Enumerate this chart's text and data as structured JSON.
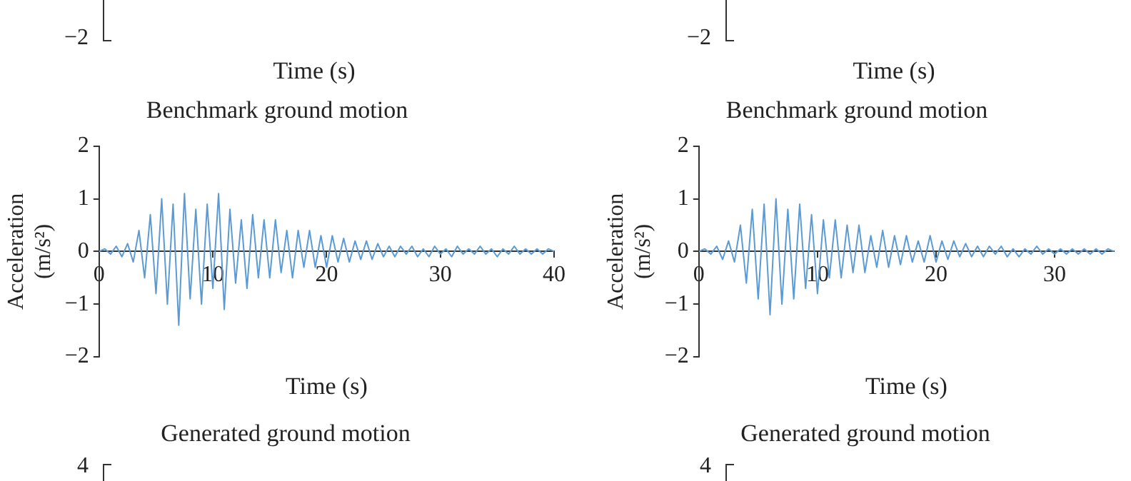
{
  "chart_data": [
    {
      "type": "other",
      "xlabel": "Time (s)",
      "annotations": [
        "−2"
      ]
    },
    {
      "type": "other",
      "xlabel": "Time (s)",
      "annotations": [
        "−2"
      ]
    },
    {
      "type": "line",
      "title": "Benchmark ground motion",
      "xlabel": "Time (s)",
      "ylabel": "Acceleration (m/s²)",
      "xlim": [
        0,
        40
      ],
      "xticks": [
        0,
        10,
        20,
        30,
        40
      ],
      "ylim": [
        -2,
        2
      ],
      "yticks": [
        -2,
        -1,
        0,
        1,
        2
      ],
      "grid": false,
      "legend": false,
      "marker": "none",
      "line_style": "solid",
      "x": [
        0,
        0.5,
        1,
        1.5,
        2,
        2.5,
        3,
        3.5,
        4,
        4.5,
        5,
        5.5,
        6,
        6.5,
        7,
        7.5,
        8,
        8.5,
        9,
        9.5,
        10,
        10.5,
        11,
        11.5,
        12,
        12.5,
        13,
        13.5,
        14,
        14.5,
        15,
        15.5,
        16,
        16.5,
        17,
        17.5,
        18,
        18.5,
        19,
        19.5,
        20,
        20.5,
        21,
        21.5,
        22,
        22.5,
        23,
        23.5,
        24,
        24.5,
        25,
        25.5,
        26,
        26.5,
        27,
        27.5,
        28,
        28.5,
        29,
        29.5,
        30,
        30.5,
        31,
        31.5,
        32,
        32.5,
        33,
        33.5,
        34,
        34.5,
        35,
        35.5,
        36,
        36.5,
        37,
        37.5,
        38,
        38.5,
        39,
        39.5,
        40
      ],
      "series": [
        {
          "color": "#5b9bd5",
          "values": [
            0,
            0.05,
            -0.05,
            0.1,
            -0.1,
            0.15,
            -0.2,
            0.4,
            -0.5,
            0.7,
            -0.8,
            1.0,
            -1.0,
            0.9,
            -1.4,
            1.1,
            -0.9,
            0.8,
            -1.0,
            0.9,
            -0.7,
            1.1,
            -1.1,
            0.8,
            -0.6,
            0.6,
            -0.7,
            0.7,
            -0.5,
            0.6,
            -0.5,
            0.6,
            -0.4,
            0.4,
            -0.5,
            0.4,
            -0.3,
            0.4,
            -0.3,
            0.3,
            -0.3,
            0.3,
            -0.2,
            0.25,
            -0.2,
            0.2,
            -0.15,
            0.2,
            -0.15,
            0.15,
            -0.1,
            0.1,
            -0.1,
            0.1,
            -0.05,
            0.1,
            -0.1,
            0.05,
            -0.1,
            0.1,
            -0.05,
            0.05,
            -0.1,
            0.1,
            -0.05,
            0.05,
            -0.05,
            0.1,
            -0.05,
            0.05,
            -0.1,
            0.05,
            -0.05,
            0.1,
            -0.05,
            0.05,
            -0.05,
            0.05,
            -0.05,
            0.05,
            0
          ]
        }
      ]
    },
    {
      "type": "line",
      "title": "Benchmark ground motion",
      "xlabel": "Time (s)",
      "ylabel": "Acceleration (m/s²)",
      "xlim": [
        0,
        35
      ],
      "xticks": [
        0,
        10,
        20,
        30
      ],
      "ylim": [
        -2,
        2
      ],
      "yticks": [
        -2,
        -1,
        0,
        1,
        2
      ],
      "grid": false,
      "legend": false,
      "marker": "none",
      "line_style": "solid",
      "x": [
        0,
        0.5,
        1,
        1.5,
        2,
        2.5,
        3,
        3.5,
        4,
        4.5,
        5,
        5.5,
        6,
        6.5,
        7,
        7.5,
        8,
        8.5,
        9,
        9.5,
        10,
        10.5,
        11,
        11.5,
        12,
        12.5,
        13,
        13.5,
        14,
        14.5,
        15,
        15.5,
        16,
        16.5,
        17,
        17.5,
        18,
        18.5,
        19,
        19.5,
        20,
        20.5,
        21,
        21.5,
        22,
        22.5,
        23,
        23.5,
        24,
        24.5,
        25,
        25.5,
        26,
        26.5,
        27,
        27.5,
        28,
        28.5,
        29,
        29.5,
        30,
        30.5,
        31,
        31.5,
        32,
        32.5,
        33,
        33.5,
        34,
        34.5,
        35
      ],
      "series": [
        {
          "color": "#5b9bd5",
          "values": [
            0,
            0.05,
            -0.05,
            0.1,
            -0.15,
            0.2,
            -0.2,
            0.5,
            -0.6,
            0.8,
            -0.9,
            0.9,
            -1.2,
            1.0,
            -1.0,
            0.8,
            -0.9,
            0.9,
            -0.7,
            0.7,
            -0.8,
            0.6,
            -0.5,
            0.6,
            -0.5,
            0.5,
            -0.4,
            0.5,
            -0.4,
            0.3,
            -0.3,
            0.4,
            -0.3,
            0.3,
            -0.25,
            0.3,
            -0.2,
            0.2,
            -0.2,
            0.3,
            -0.2,
            0.2,
            -0.15,
            0.2,
            -0.1,
            0.15,
            -0.1,
            0.1,
            -0.1,
            0.1,
            -0.05,
            0.1,
            -0.1,
            0.05,
            -0.1,
            0.05,
            -0.05,
            0.1,
            -0.05,
            0.05,
            -0.05,
            0.05,
            -0.05,
            0.05,
            -0.05,
            0.05,
            -0.05,
            0.05,
            -0.05,
            0.05,
            0
          ]
        }
      ]
    },
    {
      "type": "other",
      "title": "Generated ground motion",
      "annotations": [
        "4"
      ]
    },
    {
      "type": "other",
      "title": "Generated ground motion",
      "annotations": [
        "4"
      ]
    }
  ]
}
